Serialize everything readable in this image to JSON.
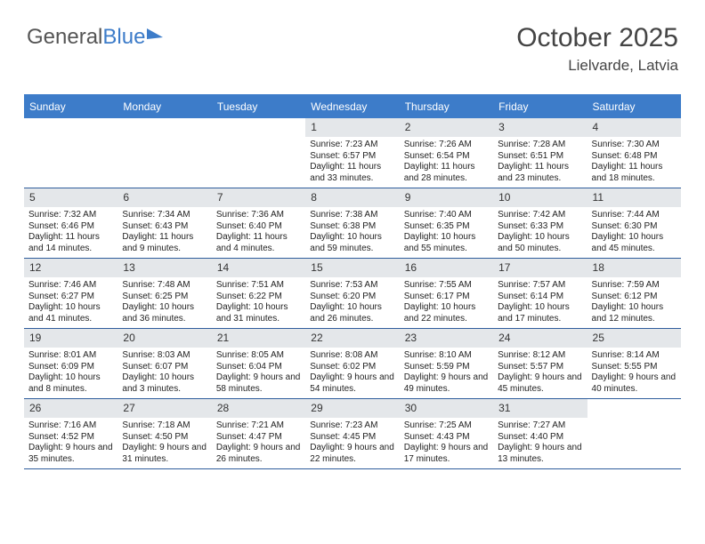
{
  "brand": {
    "part1": "General",
    "part2": "Blue"
  },
  "title": {
    "month": "October 2025",
    "location": "Lielvarde, Latvia"
  },
  "colors": {
    "accent": "#3d7cc9",
    "numbg": "#e4e7ea"
  },
  "dayNames": [
    "Sunday",
    "Monday",
    "Tuesday",
    "Wednesday",
    "Thursday",
    "Friday",
    "Saturday"
  ],
  "weeks": [
    [
      {
        "n": "",
        "sr": "",
        "ss": "",
        "dl": ""
      },
      {
        "n": "",
        "sr": "",
        "ss": "",
        "dl": ""
      },
      {
        "n": "",
        "sr": "",
        "ss": "",
        "dl": ""
      },
      {
        "n": "1",
        "sr": "Sunrise: 7:23 AM",
        "ss": "Sunset: 6:57 PM",
        "dl": "Daylight: 11 hours and 33 minutes."
      },
      {
        "n": "2",
        "sr": "Sunrise: 7:26 AM",
        "ss": "Sunset: 6:54 PM",
        "dl": "Daylight: 11 hours and 28 minutes."
      },
      {
        "n": "3",
        "sr": "Sunrise: 7:28 AM",
        "ss": "Sunset: 6:51 PM",
        "dl": "Daylight: 11 hours and 23 minutes."
      },
      {
        "n": "4",
        "sr": "Sunrise: 7:30 AM",
        "ss": "Sunset: 6:48 PM",
        "dl": "Daylight: 11 hours and 18 minutes."
      }
    ],
    [
      {
        "n": "5",
        "sr": "Sunrise: 7:32 AM",
        "ss": "Sunset: 6:46 PM",
        "dl": "Daylight: 11 hours and 14 minutes."
      },
      {
        "n": "6",
        "sr": "Sunrise: 7:34 AM",
        "ss": "Sunset: 6:43 PM",
        "dl": "Daylight: 11 hours and 9 minutes."
      },
      {
        "n": "7",
        "sr": "Sunrise: 7:36 AM",
        "ss": "Sunset: 6:40 PM",
        "dl": "Daylight: 11 hours and 4 minutes."
      },
      {
        "n": "8",
        "sr": "Sunrise: 7:38 AM",
        "ss": "Sunset: 6:38 PM",
        "dl": "Daylight: 10 hours and 59 minutes."
      },
      {
        "n": "9",
        "sr": "Sunrise: 7:40 AM",
        "ss": "Sunset: 6:35 PM",
        "dl": "Daylight: 10 hours and 55 minutes."
      },
      {
        "n": "10",
        "sr": "Sunrise: 7:42 AM",
        "ss": "Sunset: 6:33 PM",
        "dl": "Daylight: 10 hours and 50 minutes."
      },
      {
        "n": "11",
        "sr": "Sunrise: 7:44 AM",
        "ss": "Sunset: 6:30 PM",
        "dl": "Daylight: 10 hours and 45 minutes."
      }
    ],
    [
      {
        "n": "12",
        "sr": "Sunrise: 7:46 AM",
        "ss": "Sunset: 6:27 PM",
        "dl": "Daylight: 10 hours and 41 minutes."
      },
      {
        "n": "13",
        "sr": "Sunrise: 7:48 AM",
        "ss": "Sunset: 6:25 PM",
        "dl": "Daylight: 10 hours and 36 minutes."
      },
      {
        "n": "14",
        "sr": "Sunrise: 7:51 AM",
        "ss": "Sunset: 6:22 PM",
        "dl": "Daylight: 10 hours and 31 minutes."
      },
      {
        "n": "15",
        "sr": "Sunrise: 7:53 AM",
        "ss": "Sunset: 6:20 PM",
        "dl": "Daylight: 10 hours and 26 minutes."
      },
      {
        "n": "16",
        "sr": "Sunrise: 7:55 AM",
        "ss": "Sunset: 6:17 PM",
        "dl": "Daylight: 10 hours and 22 minutes."
      },
      {
        "n": "17",
        "sr": "Sunrise: 7:57 AM",
        "ss": "Sunset: 6:14 PM",
        "dl": "Daylight: 10 hours and 17 minutes."
      },
      {
        "n": "18",
        "sr": "Sunrise: 7:59 AM",
        "ss": "Sunset: 6:12 PM",
        "dl": "Daylight: 10 hours and 12 minutes."
      }
    ],
    [
      {
        "n": "19",
        "sr": "Sunrise: 8:01 AM",
        "ss": "Sunset: 6:09 PM",
        "dl": "Daylight: 10 hours and 8 minutes."
      },
      {
        "n": "20",
        "sr": "Sunrise: 8:03 AM",
        "ss": "Sunset: 6:07 PM",
        "dl": "Daylight: 10 hours and 3 minutes."
      },
      {
        "n": "21",
        "sr": "Sunrise: 8:05 AM",
        "ss": "Sunset: 6:04 PM",
        "dl": "Daylight: 9 hours and 58 minutes."
      },
      {
        "n": "22",
        "sr": "Sunrise: 8:08 AM",
        "ss": "Sunset: 6:02 PM",
        "dl": "Daylight: 9 hours and 54 minutes."
      },
      {
        "n": "23",
        "sr": "Sunrise: 8:10 AM",
        "ss": "Sunset: 5:59 PM",
        "dl": "Daylight: 9 hours and 49 minutes."
      },
      {
        "n": "24",
        "sr": "Sunrise: 8:12 AM",
        "ss": "Sunset: 5:57 PM",
        "dl": "Daylight: 9 hours and 45 minutes."
      },
      {
        "n": "25",
        "sr": "Sunrise: 8:14 AM",
        "ss": "Sunset: 5:55 PM",
        "dl": "Daylight: 9 hours and 40 minutes."
      }
    ],
    [
      {
        "n": "26",
        "sr": "Sunrise: 7:16 AM",
        "ss": "Sunset: 4:52 PM",
        "dl": "Daylight: 9 hours and 35 minutes."
      },
      {
        "n": "27",
        "sr": "Sunrise: 7:18 AM",
        "ss": "Sunset: 4:50 PM",
        "dl": "Daylight: 9 hours and 31 minutes."
      },
      {
        "n": "28",
        "sr": "Sunrise: 7:21 AM",
        "ss": "Sunset: 4:47 PM",
        "dl": "Daylight: 9 hours and 26 minutes."
      },
      {
        "n": "29",
        "sr": "Sunrise: 7:23 AM",
        "ss": "Sunset: 4:45 PM",
        "dl": "Daylight: 9 hours and 22 minutes."
      },
      {
        "n": "30",
        "sr": "Sunrise: 7:25 AM",
        "ss": "Sunset: 4:43 PM",
        "dl": "Daylight: 9 hours and 17 minutes."
      },
      {
        "n": "31",
        "sr": "Sunrise: 7:27 AM",
        "ss": "Sunset: 4:40 PM",
        "dl": "Daylight: 9 hours and 13 minutes."
      },
      {
        "n": "",
        "sr": "",
        "ss": "",
        "dl": ""
      }
    ]
  ]
}
